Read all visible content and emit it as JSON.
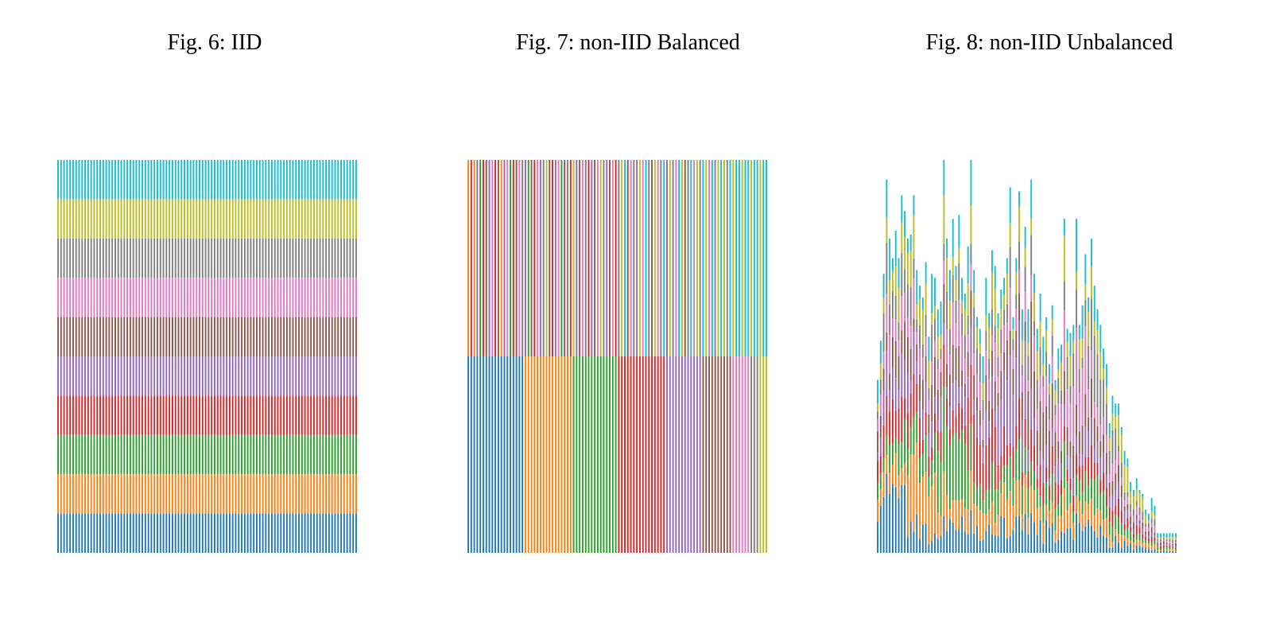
{
  "palette": [
    "#1f77b4",
    "#ff7f0e",
    "#2ca02c",
    "#d62728",
    "#9467bd",
    "#8c564b",
    "#e377c2",
    "#7f7f7f",
    "#bcbd22",
    "#17becf"
  ],
  "figures": [
    {
      "caption": "Fig. 6: IID"
    },
    {
      "caption": "Fig. 7: non-IID Balanced"
    },
    {
      "caption": "Fig. 8: non-IID Unbalanced"
    }
  ],
  "chart_data": [
    {
      "type": "bar",
      "stacked": true,
      "num_clients": 100,
      "num_classes": 10,
      "class_fraction_per_client": [
        0.1,
        0.1,
        0.1,
        0.1,
        0.1,
        0.1,
        0.1,
        0.1,
        0.1,
        0.1
      ],
      "axes_visible": false
    },
    {
      "type": "bar",
      "stacked": true,
      "num_clients": 100,
      "num_classes": 10,
      "bottom_half_class_fraction": 0.5,
      "bottom_class_client_counts": [
        19,
        16,
        15,
        16,
        12,
        10,
        6,
        3,
        3,
        0
      ],
      "top_class_by_client": [
        1,
        3,
        1,
        4,
        2,
        3,
        5,
        4,
        6,
        3,
        5,
        1,
        4,
        6,
        2,
        3,
        5,
        6,
        7,
        4,
        2,
        5,
        3,
        6,
        4,
        7,
        8,
        5,
        3,
        4,
        6,
        2,
        5,
        7,
        3,
        8,
        4,
        5,
        6,
        7,
        3,
        4,
        5,
        6,
        8,
        7,
        4,
        5,
        6,
        3,
        7,
        8,
        9,
        5,
        6,
        7,
        4,
        8,
        6,
        9,
        7,
        5,
        8,
        6,
        7,
        9,
        4,
        8,
        7,
        6,
        9,
        8,
        5,
        7,
        9,
        6,
        8,
        7,
        9,
        8,
        6,
        9,
        7,
        8,
        9,
        8,
        7,
        9,
        8,
        9,
        9,
        8,
        9,
        9,
        8,
        9,
        9,
        8,
        9,
        9
      ],
      "axes_visible": false
    },
    {
      "type": "bar",
      "stacked": true,
      "num_clients": 100,
      "num_classes": 10,
      "totals_relative_to_max": [
        0.44,
        0.54,
        0.71,
        0.95,
        0.8,
        0.75,
        0.82,
        0.75,
        0.91,
        0.87,
        0.8,
        0.81,
        0.91,
        0.72,
        0.68,
        0.65,
        0.74,
        0.55,
        0.71,
        0.7,
        0.62,
        0.64,
        1.0,
        0.8,
        0.72,
        0.85,
        0.73,
        0.86,
        0.7,
        0.66,
        0.78,
        1.0,
        0.72,
        0.6,
        0.57,
        0.5,
        0.7,
        0.61,
        0.77,
        0.73,
        0.61,
        0.67,
        0.7,
        0.75,
        0.93,
        0.6,
        0.75,
        0.92,
        0.62,
        0.83,
        0.62,
        0.95,
        0.71,
        0.57,
        0.66,
        0.55,
        0.6,
        0.48,
        0.63,
        0.44,
        0.52,
        0.53,
        0.85,
        0.57,
        0.56,
        0.58,
        0.85,
        0.58,
        0.63,
        0.76,
        0.65,
        0.8,
        0.68,
        0.62,
        0.58,
        0.52,
        0.48,
        0.33,
        0.4,
        0.38,
        0.38,
        0.32,
        0.26,
        0.24,
        0.18,
        0.16,
        0.19,
        0.16,
        0.15,
        0.11,
        0.1,
        0.14,
        0.12,
        0.05,
        0.05,
        0.05,
        0.05,
        0.05,
        0.05,
        0.05
      ],
      "axes_visible": false
    }
  ]
}
